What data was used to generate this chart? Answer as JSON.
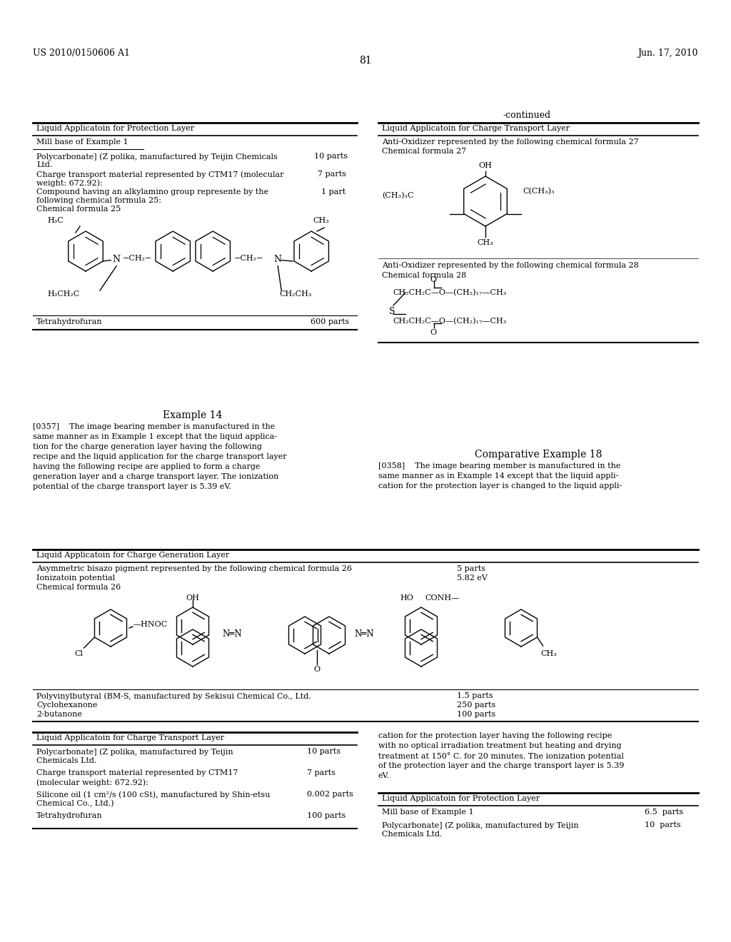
{
  "bg_color": "#ffffff",
  "page_width": 10.24,
  "page_height": 13.2,
  "header_left": "US 2010/0150606 A1",
  "header_right": "Jun. 17, 2010",
  "page_number": "81",
  "continued_label": "-continued",
  "left_table_title": "Liquid Applicatoin for Protection Layer",
  "right_table_title": "Liquid Applicatoin for Charge Transport Layer",
  "example14_title": "Example 14",
  "compex18_title": "Comparative Example 18",
  "cgl_table_title": "Liquid Applicatoin for Charge Generation Layer",
  "ctl_table2_title": "Liquid Applicatoin for Charge Transport Layer",
  "prot_table2_title": "Liquid Applicatoin for Protection Layer"
}
